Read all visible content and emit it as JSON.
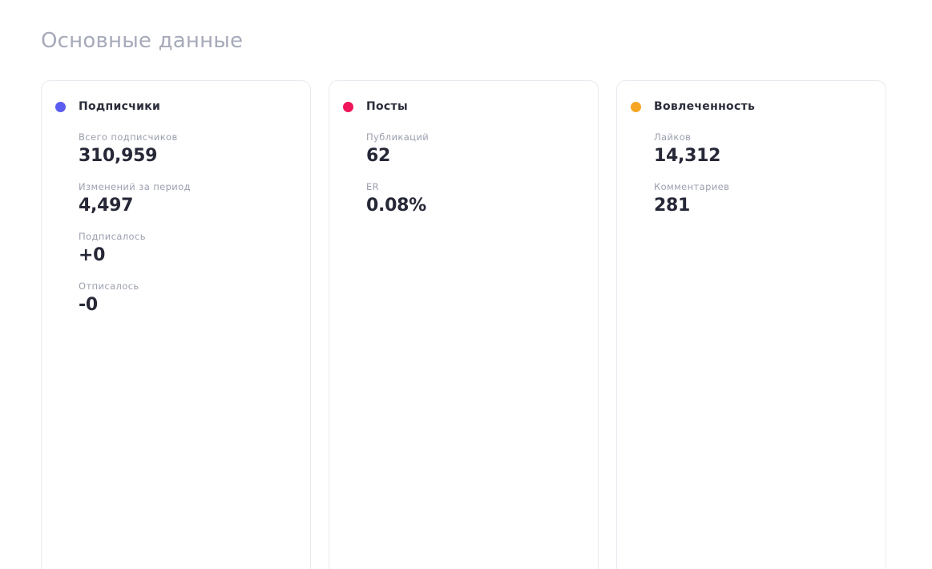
{
  "section": {
    "title": "Основные данные"
  },
  "cards": [
    {
      "title": "Подписчики",
      "dot_color": "#5b5cf0",
      "metrics": [
        {
          "label": "Всего подписчиков",
          "value": "310,959"
        },
        {
          "label": "Изменений за период",
          "value": "4,497"
        },
        {
          "label": "Подписалось",
          "value": "+0"
        },
        {
          "label": "Отписалось",
          "value": "-0"
        }
      ]
    },
    {
      "title": "Посты",
      "dot_color": "#ee1558",
      "metrics": [
        {
          "label": "Публикаций",
          "value": "62"
        },
        {
          "label": "ER",
          "value": "0.08%"
        }
      ]
    },
    {
      "title": "Вовлеченность",
      "dot_color": "#f6a623",
      "metrics": [
        {
          "label": "Лайков",
          "value": "14,312"
        },
        {
          "label": "Комментариев",
          "value": "281"
        }
      ]
    }
  ]
}
